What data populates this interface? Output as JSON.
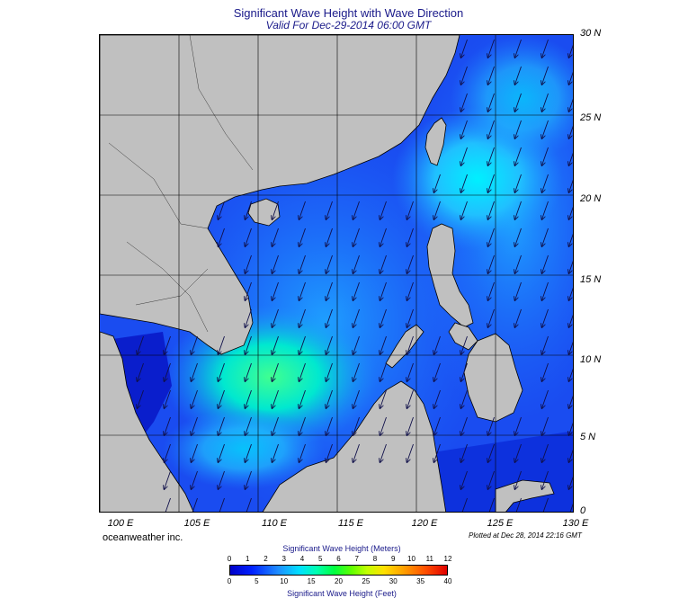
{
  "title": "Significant Wave Height with Wave Direction",
  "subtitle": "Valid For Dec-29-2014 06:00 GMT",
  "lat_labels": [
    "30 N",
    "25 N",
    "20 N",
    "15 N",
    "10 N",
    "5 N",
    "0"
  ],
  "lon_labels": [
    "100 E",
    "105 E",
    "110 E",
    "115 E",
    "120 E",
    "125 E",
    "130 E"
  ],
  "brand": "oceanweather inc.",
  "plotted": "Plotted at Dec 28, 2014 22:16 GMT",
  "colorbar": {
    "title_meters": "Significant Wave Height (Meters)",
    "title_feet": "Significant Wave Height (Feet)",
    "meters_ticks": [
      "0",
      "1",
      "2",
      "3",
      "4",
      "5",
      "6",
      "7",
      "8",
      "9",
      "10",
      "11",
      "12"
    ],
    "feet_ticks": [
      "0",
      "5",
      "10",
      "15",
      "20",
      "25",
      "30",
      "35",
      "40"
    ]
  },
  "colors": {
    "land": "#c0c0c0",
    "low_wave": "#0a1ecc",
    "mid_wave": "#1e90ff",
    "high_wave": "#00ffb0",
    "arrow": "#10104a",
    "title": "#1a1a8a"
  },
  "map": {
    "lon_range": [
      100,
      130
    ],
    "lat_range": [
      0,
      30
    ],
    "grid": true,
    "arrow_direction": "toward south-southwest"
  }
}
